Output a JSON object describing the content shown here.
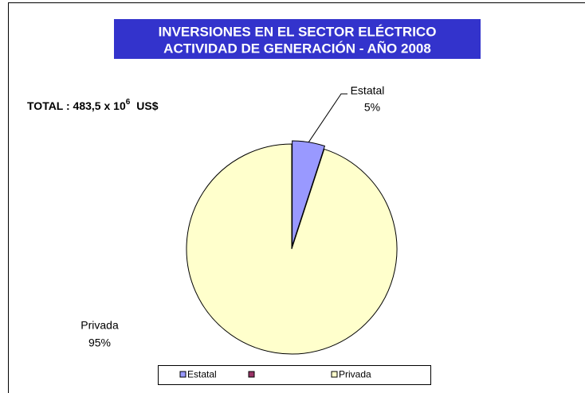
{
  "chart_data": {
    "type": "pie",
    "title": [
      "INVERSIONES EN EL SECTOR ELÉCTRICO",
      "ACTIVIDAD DE GENERACIÓN - AÑO 2008"
    ],
    "annotation": {
      "text": "TOTAL : 483,5 x 10",
      "superscript": "6",
      "unit": "US$"
    },
    "categories": [
      "Estatal",
      null,
      "Privada"
    ],
    "values": [
      5,
      0,
      95
    ],
    "value_labels": [
      "5%",
      null,
      "95%"
    ],
    "colors": [
      "#9999ff",
      "#993366",
      "#ffffcc"
    ],
    "title_background": "#3333cc"
  }
}
